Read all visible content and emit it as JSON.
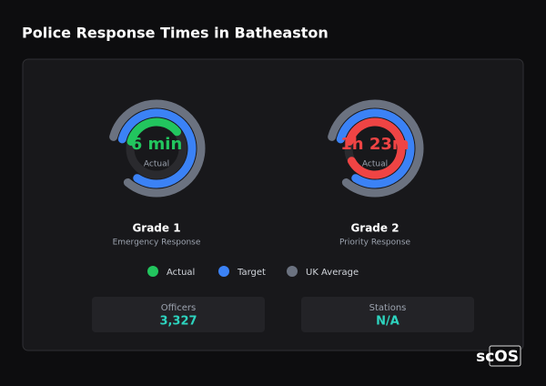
{
  "header": {
    "title": "Police Response Times in Batheaston"
  },
  "gauges": [
    {
      "value_label": "6 min",
      "value_caption": "Actual",
      "title": "Grade 1",
      "subtitle": "Emergency Response",
      "color": "#22c55e",
      "actual": 0.35,
      "target": 0.8,
      "uk_average": 0.82
    },
    {
      "value_label": "1h 23m",
      "value_caption": "Actual",
      "title": "Grade 2",
      "subtitle": "Priority Response",
      "color": "#ef4444",
      "actual": 0.88,
      "target": 0.8,
      "uk_average": 0.82
    }
  ],
  "legend": [
    {
      "name": "Actual",
      "color": "#22c55e"
    },
    {
      "name": "Target",
      "color": "#3b82f6"
    },
    {
      "name": "UK Average",
      "color": "#6b7280"
    }
  ],
  "stats": [
    {
      "label": "Officers",
      "value": "3,327"
    },
    {
      "label": "Stations",
      "value": "N/A"
    }
  ],
  "brand": "scOS"
}
